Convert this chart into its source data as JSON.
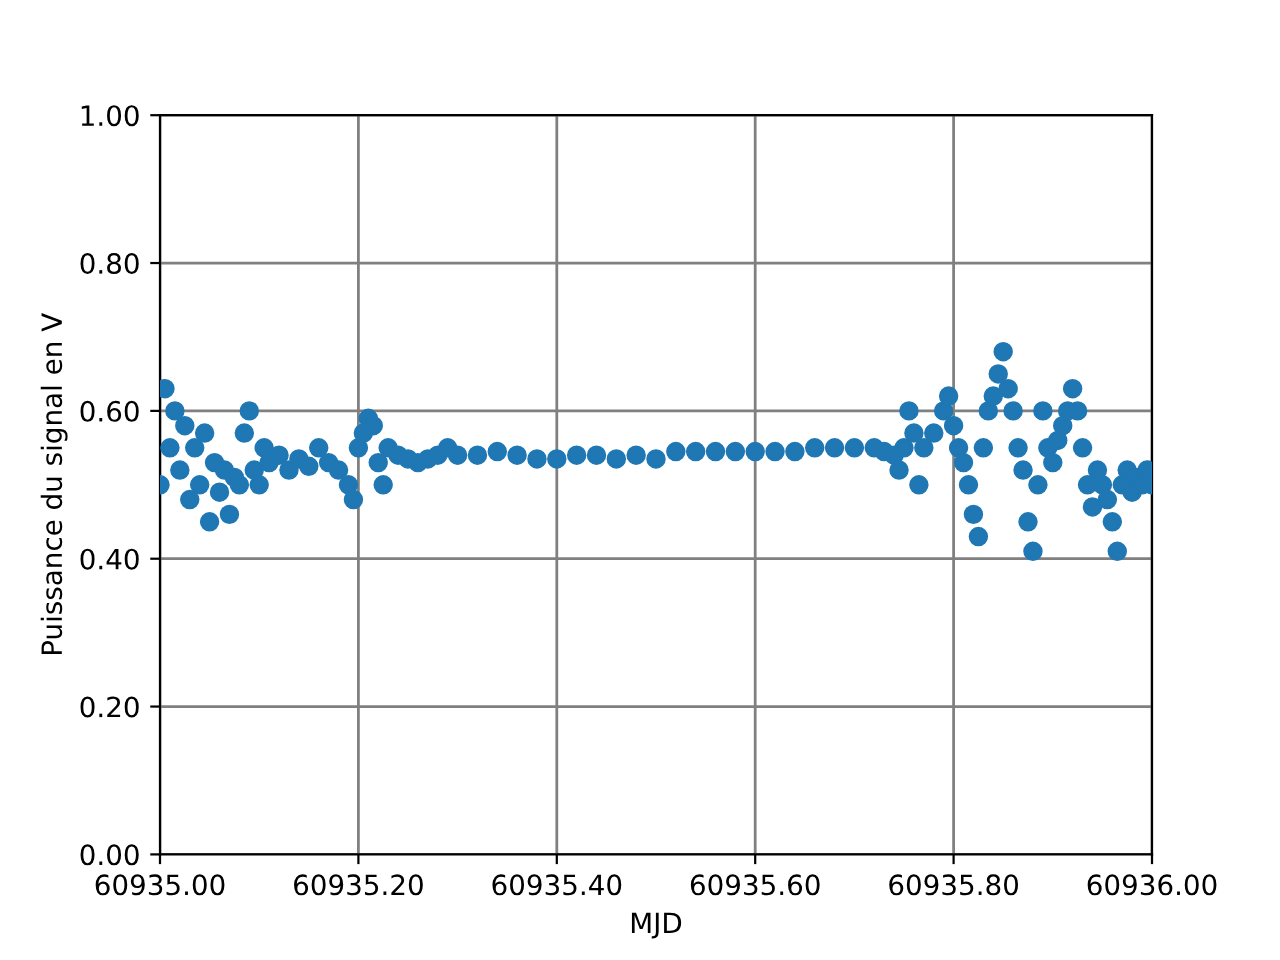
{
  "chart_data": {
    "type": "scatter",
    "xlabel": "MJD",
    "ylabel": "Puissance du signal en V",
    "marker": "circle",
    "grid": true,
    "xlim": [
      60935.0,
      60936.0
    ],
    "ylim": [
      0,
      1
    ],
    "xticks": [
      {
        "value": 60935.0,
        "label": "60935.00"
      },
      {
        "value": 60935.2,
        "label": "60935.20"
      },
      {
        "value": 60935.4,
        "label": "60935.40"
      },
      {
        "value": 60935.6,
        "label": "60935.60"
      },
      {
        "value": 60935.8,
        "label": "60935.80"
      },
      {
        "value": 60936.0,
        "label": "60936.00"
      }
    ],
    "yticks": [
      {
        "value": 0,
        "label": "0.00"
      },
      {
        "value": 0.2,
        "label": "0.20"
      },
      {
        "value": 0.4,
        "label": "0.40"
      },
      {
        "value": 0.6,
        "label": "0.60"
      },
      {
        "value": 0.8,
        "label": "0.80"
      },
      {
        "value": 1.0,
        "label": "1.00"
      }
    ],
    "series": [
      {
        "color": "#1f77b4",
        "x": [
          60935.0,
          60935.005,
          60935.01,
          60935.015,
          60935.02,
          60935.025,
          60935.03,
          60935.035,
          60935.04,
          60935.045,
          60935.05,
          60935.055,
          60935.06,
          60935.065,
          60935.07,
          60935.075,
          60935.08,
          60935.085,
          60935.09,
          60935.095,
          60935.1,
          60935.105,
          60935.11,
          60935.12,
          60935.13,
          60935.14,
          60935.15,
          60935.16,
          60935.17,
          60935.18,
          60935.19,
          60935.195,
          60935.2,
          60935.205,
          60935.21,
          60935.215,
          60935.22,
          60935.225,
          60935.23,
          60935.24,
          60935.25,
          60935.26,
          60935.27,
          60935.28,
          60935.29,
          60935.3,
          60935.32,
          60935.34,
          60935.36,
          60935.38,
          60935.4,
          60935.42,
          60935.44,
          60935.46,
          60935.48,
          60935.5,
          60935.52,
          60935.54,
          60935.56,
          60935.58,
          60935.6,
          60935.62,
          60935.64,
          60935.66,
          60935.68,
          60935.7,
          60935.72,
          60935.73,
          60935.74,
          60935.745,
          60935.75,
          60935.755,
          60935.76,
          60935.765,
          60935.77,
          60935.78,
          60935.79,
          60935.795,
          60935.8,
          60935.805,
          60935.81,
          60935.815,
          60935.82,
          60935.825,
          60935.83,
          60935.835,
          60935.84,
          60935.845,
          60935.85,
          60935.855,
          60935.86,
          60935.865,
          60935.87,
          60935.875,
          60935.88,
          60935.885,
          60935.89,
          60935.895,
          60935.9,
          60935.905,
          60935.91,
          60935.915,
          60935.92,
          60935.925,
          60935.93,
          60935.935,
          60935.94,
          60935.945,
          60935.95,
          60935.955,
          60935.96,
          60935.965,
          60935.97,
          60935.975,
          60935.98,
          60935.985,
          60935.99,
          60935.995,
          60936.0
        ],
        "values": [
          0.5,
          0.63,
          0.55,
          0.6,
          0.52,
          0.58,
          0.48,
          0.55,
          0.5,
          0.57,
          0.45,
          0.53,
          0.49,
          0.52,
          0.46,
          0.51,
          0.5,
          0.57,
          0.6,
          0.52,
          0.5,
          0.55,
          0.53,
          0.54,
          0.52,
          0.535,
          0.525,
          0.55,
          0.53,
          0.52,
          0.5,
          0.48,
          0.55,
          0.57,
          0.59,
          0.58,
          0.53,
          0.5,
          0.55,
          0.54,
          0.535,
          0.53,
          0.535,
          0.54,
          0.55,
          0.54,
          0.54,
          0.545,
          0.54,
          0.535,
          0.535,
          0.54,
          0.54,
          0.535,
          0.54,
          0.535,
          0.545,
          0.545,
          0.545,
          0.545,
          0.545,
          0.545,
          0.545,
          0.55,
          0.55,
          0.55,
          0.55,
          0.545,
          0.54,
          0.52,
          0.55,
          0.6,
          0.57,
          0.5,
          0.55,
          0.57,
          0.6,
          0.62,
          0.58,
          0.55,
          0.53,
          0.5,
          0.46,
          0.43,
          0.55,
          0.6,
          0.62,
          0.65,
          0.68,
          0.63,
          0.6,
          0.55,
          0.52,
          0.45,
          0.41,
          0.5,
          0.6,
          0.55,
          0.53,
          0.56,
          0.58,
          0.6,
          0.63,
          0.6,
          0.55,
          0.5,
          0.47,
          0.52,
          0.5,
          0.48,
          0.45,
          0.41,
          0.5,
          0.52,
          0.49,
          0.51,
          0.5,
          0.52,
          0.5
        ]
      }
    ]
  }
}
